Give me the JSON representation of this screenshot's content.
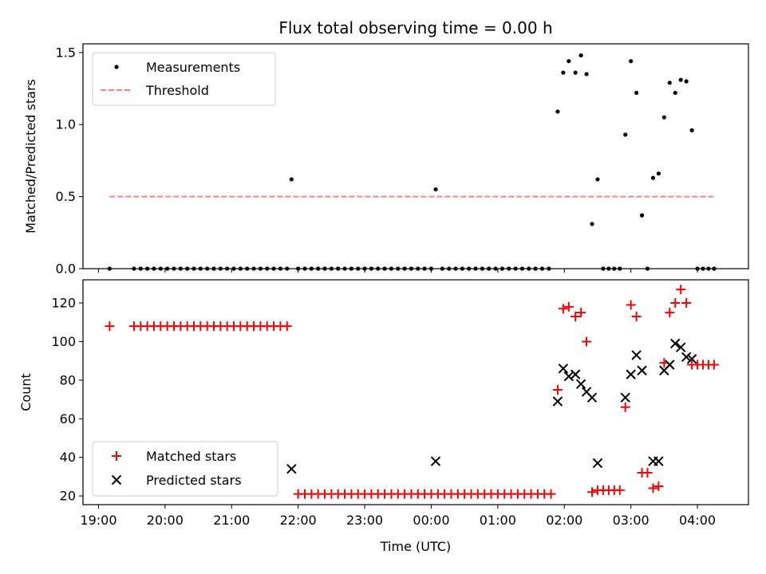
{
  "chart_data": [
    {
      "type": "scatter",
      "title": "Flux total observing time = 0.00 h",
      "ylabel": "Matched/Predicted stars",
      "xlabel": "",
      "xlim": [
        "18:46",
        "04:46"
      ],
      "ylim": [
        0,
        1.56
      ],
      "y_ticks": [
        "0.0",
        "0.5",
        "1.0",
        "1.5"
      ],
      "legend_position": "upper-left",
      "legend": [
        "Measurements",
        "Threshold"
      ],
      "series": [
        {
          "name": "Measurements",
          "marker": "dot",
          "color": "#000000",
          "points": [
            [
              "19:10",
              0
            ],
            [
              "19:32",
              0
            ],
            [
              "19:38",
              0
            ],
            [
              "19:44",
              0
            ],
            [
              "19:50",
              0
            ],
            [
              "19:56",
              0
            ],
            [
              "20:02",
              0
            ],
            [
              "20:08",
              0
            ],
            [
              "20:14",
              0
            ],
            [
              "20:20",
              0
            ],
            [
              "20:26",
              0
            ],
            [
              "20:32",
              0
            ],
            [
              "20:38",
              0
            ],
            [
              "20:44",
              0
            ],
            [
              "20:50",
              0
            ],
            [
              "20:56",
              0
            ],
            [
              "21:02",
              0
            ],
            [
              "21:08",
              0
            ],
            [
              "21:14",
              0
            ],
            [
              "21:20",
              0
            ],
            [
              "21:26",
              0
            ],
            [
              "21:32",
              0
            ],
            [
              "21:38",
              0
            ],
            [
              "21:44",
              0
            ],
            [
              "21:50",
              0
            ],
            [
              "21:54",
              0.62
            ],
            [
              "22:00",
              0
            ],
            [
              "22:06",
              0
            ],
            [
              "22:12",
              0
            ],
            [
              "22:18",
              0
            ],
            [
              "22:24",
              0
            ],
            [
              "22:30",
              0
            ],
            [
              "22:36",
              0
            ],
            [
              "22:42",
              0
            ],
            [
              "22:48",
              0
            ],
            [
              "22:54",
              0
            ],
            [
              "23:00",
              0
            ],
            [
              "23:06",
              0
            ],
            [
              "23:12",
              0
            ],
            [
              "23:18",
              0
            ],
            [
              "23:24",
              0
            ],
            [
              "23:30",
              0
            ],
            [
              "23:36",
              0
            ],
            [
              "23:42",
              0
            ],
            [
              "23:48",
              0
            ],
            [
              "23:54",
              0
            ],
            [
              "00:00",
              0
            ],
            [
              "00:04",
              0.55
            ],
            [
              "00:10",
              0
            ],
            [
              "00:16",
              0
            ],
            [
              "00:22",
              0
            ],
            [
              "00:28",
              0
            ],
            [
              "00:34",
              0
            ],
            [
              "00:40",
              0
            ],
            [
              "00:46",
              0
            ],
            [
              "00:52",
              0
            ],
            [
              "00:58",
              0
            ],
            [
              "01:04",
              0
            ],
            [
              "01:10",
              0
            ],
            [
              "01:16",
              0
            ],
            [
              "01:22",
              0
            ],
            [
              "01:28",
              0
            ],
            [
              "01:34",
              0
            ],
            [
              "01:40",
              0
            ],
            [
              "01:46",
              0
            ],
            [
              "01:54",
              1.09
            ],
            [
              "01:59",
              1.36
            ],
            [
              "02:04",
              1.44
            ],
            [
              "02:10",
              1.36
            ],
            [
              "02:15",
              1.48
            ],
            [
              "02:20",
              1.35
            ],
            [
              "02:25",
              0.31
            ],
            [
              "02:30",
              0.62
            ],
            [
              "02:35",
              0
            ],
            [
              "02:40",
              0
            ],
            [
              "02:45",
              0
            ],
            [
              "02:50",
              0
            ],
            [
              "02:55",
              0.93
            ],
            [
              "03:00",
              1.44
            ],
            [
              "03:05",
              1.22
            ],
            [
              "03:10",
              0.37
            ],
            [
              "03:15",
              0
            ],
            [
              "03:20",
              0.63
            ],
            [
              "03:25",
              0.66
            ],
            [
              "03:30",
              1.05
            ],
            [
              "03:35",
              1.29
            ],
            [
              "03:40",
              1.22
            ],
            [
              "03:45",
              1.31
            ],
            [
              "03:50",
              1.3
            ],
            [
              "03:55",
              0.96
            ],
            [
              "04:00",
              0
            ],
            [
              "04:05",
              0
            ],
            [
              "04:10",
              0
            ],
            [
              "04:15",
              0
            ]
          ]
        },
        {
          "name": "Threshold",
          "marker": "dashed-line",
          "color": "#ff8080",
          "points": [
            [
              "19:10",
              0.5
            ],
            [
              "04:15",
              0.5
            ]
          ]
        }
      ]
    },
    {
      "type": "scatter",
      "title": "",
      "ylabel": "Count",
      "xlabel": "Time (UTC)",
      "xlim": [
        "18:46",
        "04:46"
      ],
      "ylim": [
        15.5,
        132
      ],
      "y_ticks": [
        "20",
        "40",
        "60",
        "80",
        "100",
        "120"
      ],
      "x_ticks": [
        "19:00",
        "20:00",
        "21:00",
        "22:00",
        "23:00",
        "00:00",
        "01:00",
        "02:00",
        "03:00",
        "04:00"
      ],
      "legend_position": "lower-left",
      "legend": [
        "Matched stars",
        "Predicted stars"
      ],
      "series": [
        {
          "name": "Matched stars",
          "marker": "plus",
          "color": "#ff0000",
          "points": [
            [
              "19:10",
              108
            ],
            [
              "19:32",
              108
            ],
            [
              "19:38",
              108
            ],
            [
              "19:44",
              108
            ],
            [
              "19:50",
              108
            ],
            [
              "19:56",
              108
            ],
            [
              "20:02",
              108
            ],
            [
              "20:08",
              108
            ],
            [
              "20:14",
              108
            ],
            [
              "20:20",
              108
            ],
            [
              "20:26",
              108
            ],
            [
              "20:32",
              108
            ],
            [
              "20:38",
              108
            ],
            [
              "20:44",
              108
            ],
            [
              "20:50",
              108
            ],
            [
              "20:56",
              108
            ],
            [
              "21:02",
              108
            ],
            [
              "21:08",
              108
            ],
            [
              "21:14",
              108
            ],
            [
              "21:20",
              108
            ],
            [
              "21:26",
              108
            ],
            [
              "21:32",
              108
            ],
            [
              "21:38",
              108
            ],
            [
              "21:44",
              108
            ],
            [
              "21:50",
              108
            ],
            [
              "22:00",
              21
            ],
            [
              "22:06",
              21
            ],
            [
              "22:12",
              21
            ],
            [
              "22:18",
              21
            ],
            [
              "22:24",
              21
            ],
            [
              "22:30",
              21
            ],
            [
              "22:36",
              21
            ],
            [
              "22:42",
              21
            ],
            [
              "22:48",
              21
            ],
            [
              "22:54",
              21
            ],
            [
              "23:00",
              21
            ],
            [
              "23:06",
              21
            ],
            [
              "23:12",
              21
            ],
            [
              "23:18",
              21
            ],
            [
              "23:24",
              21
            ],
            [
              "23:30",
              21
            ],
            [
              "23:36",
              21
            ],
            [
              "23:42",
              21
            ],
            [
              "23:48",
              21
            ],
            [
              "23:54",
              21
            ],
            [
              "00:00",
              21
            ],
            [
              "00:06",
              21
            ],
            [
              "00:12",
              21
            ],
            [
              "00:18",
              21
            ],
            [
              "00:24",
              21
            ],
            [
              "00:30",
              21
            ],
            [
              "00:36",
              21
            ],
            [
              "00:42",
              21
            ],
            [
              "00:48",
              21
            ],
            [
              "00:54",
              21
            ],
            [
              "01:00",
              21
            ],
            [
              "01:06",
              21
            ],
            [
              "01:12",
              21
            ],
            [
              "01:18",
              21
            ],
            [
              "01:24",
              21
            ],
            [
              "01:30",
              21
            ],
            [
              "01:36",
              21
            ],
            [
              "01:42",
              21
            ],
            [
              "01:48",
              21
            ],
            [
              "01:54",
              75
            ],
            [
              "01:59",
              117
            ],
            [
              "02:04",
              118
            ],
            [
              "02:10",
              113
            ],
            [
              "02:15",
              115
            ],
            [
              "02:20",
              100
            ],
            [
              "02:25",
              22
            ],
            [
              "02:30",
              23
            ],
            [
              "02:35",
              23
            ],
            [
              "02:40",
              23
            ],
            [
              "02:45",
              23
            ],
            [
              "02:50",
              23
            ],
            [
              "02:55",
              66
            ],
            [
              "03:00",
              119
            ],
            [
              "03:05",
              113
            ],
            [
              "03:10",
              32
            ],
            [
              "03:15",
              32
            ],
            [
              "03:20",
              24
            ],
            [
              "03:25",
              25
            ],
            [
              "03:30",
              89
            ],
            [
              "03:35",
              115
            ],
            [
              "03:40",
              120
            ],
            [
              "03:45",
              127
            ],
            [
              "03:50",
              120
            ],
            [
              "03:55",
              88
            ],
            [
              "04:00",
              88
            ],
            [
              "04:05",
              88
            ],
            [
              "04:10",
              88
            ],
            [
              "04:15",
              88
            ]
          ]
        },
        {
          "name": "Predicted stars",
          "marker": "x",
          "color": "#000000",
          "points": [
            [
              "21:54",
              34
            ],
            [
              "00:04",
              38
            ],
            [
              "01:54",
              69
            ],
            [
              "01:59",
              86
            ],
            [
              "02:04",
              82
            ],
            [
              "02:10",
              83
            ],
            [
              "02:15",
              78
            ],
            [
              "02:20",
              74
            ],
            [
              "02:25",
              71
            ],
            [
              "02:30",
              37
            ],
            [
              "02:55",
              71
            ],
            [
              "03:00",
              83
            ],
            [
              "03:05",
              93
            ],
            [
              "03:10",
              85
            ],
            [
              "03:20",
              38
            ],
            [
              "03:25",
              38
            ],
            [
              "03:30",
              85
            ],
            [
              "03:35",
              88
            ],
            [
              "03:40",
              99
            ],
            [
              "03:45",
              97
            ],
            [
              "03:50",
              92
            ],
            [
              "03:55",
              91
            ]
          ]
        }
      ]
    }
  ]
}
